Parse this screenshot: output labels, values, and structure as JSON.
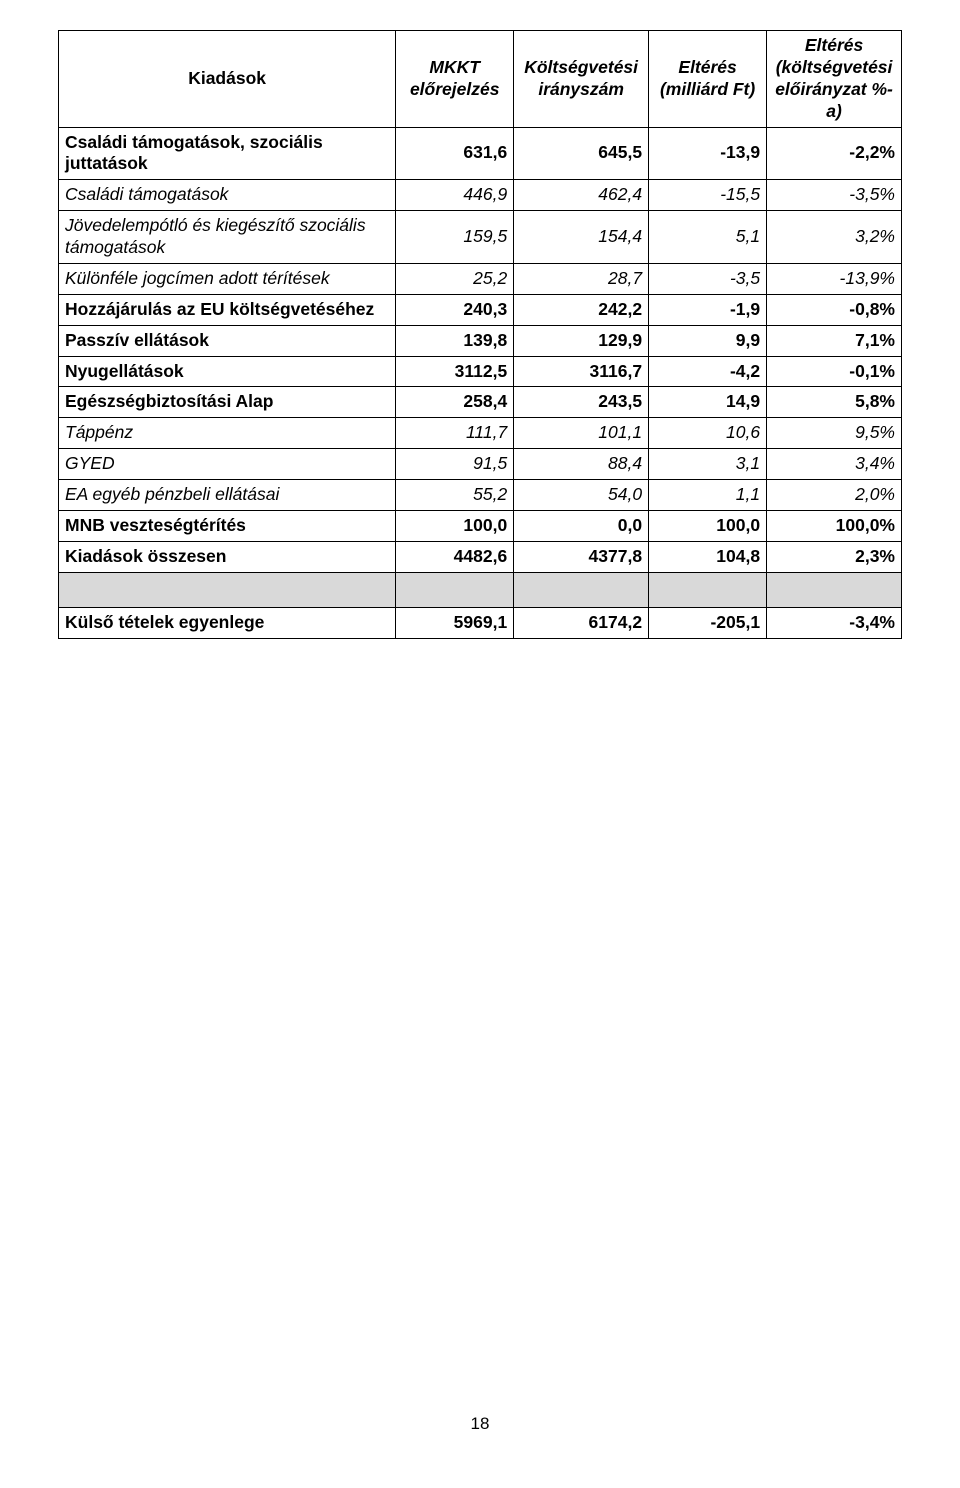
{
  "header": {
    "c0": "Kiadások",
    "c1": "MKKT előrejelzés",
    "c2": "Költségvetési irányszám",
    "c3": "Eltérés (milliárd Ft)",
    "c4": "Eltérés (költségvetési előirányzat %-a)"
  },
  "rows": [
    {
      "label": "Családi támogatások, szociális juttatások",
      "v": [
        "631,6",
        "645,5",
        "-13,9",
        "-2,2%"
      ],
      "bold": true,
      "italic": false
    },
    {
      "label": "Családi támogatások",
      "v": [
        "446,9",
        "462,4",
        "-15,5",
        "-3,5%"
      ],
      "bold": false,
      "italic": true
    },
    {
      "label": "Jövedelempótló és kiegészítő szociális támogatások",
      "v": [
        "159,5",
        "154,4",
        "5,1",
        "3,2%"
      ],
      "bold": false,
      "italic": true
    },
    {
      "label": "Különféle jogcímen adott térítések",
      "v": [
        "25,2",
        "28,7",
        "-3,5",
        "-13,9%"
      ],
      "bold": false,
      "italic": true
    },
    {
      "label": "Hozzájárulás az EU költségvetéséhez",
      "v": [
        "240,3",
        "242,2",
        "-1,9",
        "-0,8%"
      ],
      "bold": true,
      "italic": false
    },
    {
      "label": "Passzív ellátások",
      "v": [
        "139,8",
        "129,9",
        "9,9",
        "7,1%"
      ],
      "bold": true,
      "italic": false
    },
    {
      "label": "Nyugellátások",
      "v": [
        "3112,5",
        "3116,7",
        "-4,2",
        "-0,1%"
      ],
      "bold": true,
      "italic": false
    },
    {
      "label": "Egészségbiztosítási Alap",
      "v": [
        "258,4",
        "243,5",
        "14,9",
        "5,8%"
      ],
      "bold": true,
      "italic": false
    },
    {
      "label": "Táppénz",
      "v": [
        "111,7",
        "101,1",
        "10,6",
        "9,5%"
      ],
      "bold": false,
      "italic": true
    },
    {
      "label": "GYED",
      "v": [
        "91,5",
        "88,4",
        "3,1",
        "3,4%"
      ],
      "bold": false,
      "italic": true
    },
    {
      "label": "EA egyéb pénzbeli ellátásai",
      "v": [
        "55,2",
        "54,0",
        "1,1",
        "2,0%"
      ],
      "bold": false,
      "italic": true
    },
    {
      "label": "MNB veszteségtérítés",
      "v": [
        "100,0",
        "0,0",
        "100,0",
        "100,0%"
      ],
      "bold": true,
      "italic": false
    },
    {
      "label": "Kiadások összesen",
      "v": [
        "4482,6",
        "4377,8",
        "104,8",
        "2,3%"
      ],
      "bold": true,
      "italic": false
    }
  ],
  "footerRow": {
    "label": "Külső tételek egyenlege",
    "v": [
      "5969,1",
      "6174,2",
      "-205,1",
      "-3,4%"
    ]
  },
  "pageNumber": "18"
}
